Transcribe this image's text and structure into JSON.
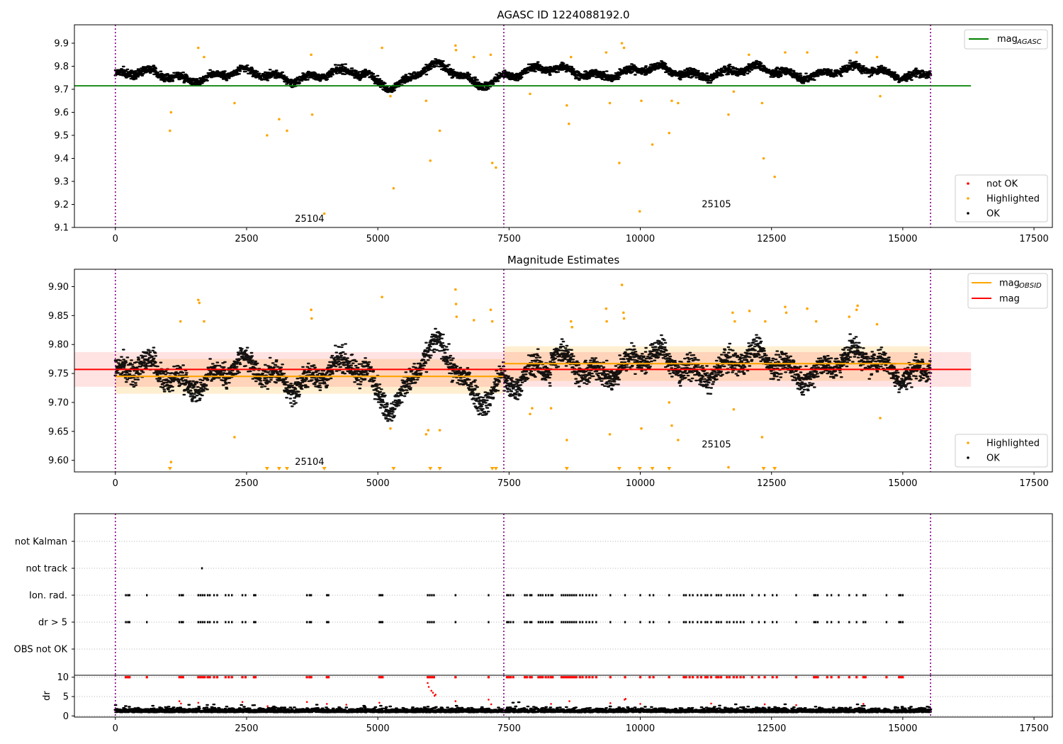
{
  "chart_data": [
    {
      "type": "scatter",
      "title": "AGASC ID 1224088192.0",
      "xlim": [
        -780,
        17850
      ],
      "ylim": [
        9.1,
        9.98
      ],
      "x_ticks": [
        0,
        2500,
        5000,
        7500,
        10000,
        12500,
        15000,
        17500
      ],
      "x_tick_labels": [
        "0",
        "2500",
        "5000",
        "7500",
        "10000",
        "12500",
        "15000",
        "17500"
      ],
      "y_ticks": [
        9.1,
        9.2,
        9.3,
        9.4,
        9.5,
        9.6,
        9.7,
        9.8,
        9.9
      ],
      "y_tick_labels": [
        "9.1",
        "9.2",
        "9.3",
        "9.4",
        "9.5",
        "9.6",
        "9.7",
        "9.8",
        "9.9"
      ],
      "mag_agasc": {
        "value": 9.715,
        "x_range": [
          -780,
          16300
        ],
        "color": "#008000"
      },
      "obsid_boundaries": [
        0,
        7400,
        15530
      ],
      "obsid_labels": [
        {
          "text": "25104",
          "x": 3700,
          "y": 9.125
        },
        {
          "text": "25105",
          "x": 11450,
          "y": 9.187
        }
      ],
      "legend": {
        "upper_right": [
          {
            "label": "mag",
            "sub": "AGASC",
            "color": "#008000"
          }
        ],
        "lower_right": [
          {
            "label": "not OK",
            "color": "#ff0000"
          },
          {
            "label": "Highlighted",
            "color": "#ffa500"
          },
          {
            "label": "OK",
            "color": "#000000"
          }
        ]
      },
      "ok_series": {
        "name": "OK",
        "color": "#000000",
        "x_range": [
          0,
          15530
        ],
        "baseline": 9.77
      },
      "highlighted_points": [
        [
          1040,
          9.52
        ],
        [
          1060,
          9.6
        ],
        [
          1580,
          9.88
        ],
        [
          1690,
          9.84
        ],
        [
          2270,
          9.64
        ],
        [
          2890,
          9.5
        ],
        [
          3120,
          9.57
        ],
        [
          3270,
          9.52
        ],
        [
          3730,
          9.85
        ],
        [
          3750,
          9.59
        ],
        [
          3980,
          9.16
        ],
        [
          5080,
          9.88
        ],
        [
          5240,
          9.67
        ],
        [
          5300,
          9.27
        ],
        [
          5920,
          9.65
        ],
        [
          6000,
          9.39
        ],
        [
          6180,
          9.52
        ],
        [
          6480,
          9.89
        ],
        [
          6490,
          9.87
        ],
        [
          6830,
          9.84
        ],
        [
          7150,
          9.85
        ],
        [
          7180,
          9.38
        ],
        [
          7250,
          9.36
        ],
        [
          7900,
          9.68
        ],
        [
          8600,
          9.63
        ],
        [
          8640,
          9.55
        ],
        [
          8680,
          9.84
        ],
        [
          9350,
          9.86
        ],
        [
          9420,
          9.64
        ],
        [
          9600,
          9.38
        ],
        [
          9650,
          9.9
        ],
        [
          9690,
          9.88
        ],
        [
          9990,
          9.17
        ],
        [
          10020,
          9.65
        ],
        [
          10230,
          9.46
        ],
        [
          10550,
          9.51
        ],
        [
          10600,
          9.65
        ],
        [
          10720,
          9.64
        ],
        [
          11680,
          9.59
        ],
        [
          11780,
          9.69
        ],
        [
          12070,
          9.85
        ],
        [
          12320,
          9.64
        ],
        [
          12350,
          9.4
        ],
        [
          12560,
          9.32
        ],
        [
          12760,
          9.86
        ],
        [
          13180,
          9.86
        ],
        [
          14120,
          9.86
        ],
        [
          14510,
          9.84
        ],
        [
          14570,
          9.67
        ]
      ]
    },
    {
      "type": "scatter",
      "title": "Magnitude Estimates",
      "xlim": [
        -780,
        17850
      ],
      "ylim": [
        9.58,
        9.93
      ],
      "x_ticks": [
        0,
        2500,
        5000,
        7500,
        10000,
        12500,
        15000,
        17500
      ],
      "x_tick_labels": [
        "0",
        "2500",
        "5000",
        "7500",
        "10000",
        "12500",
        "15000",
        "17500"
      ],
      "y_ticks": [
        9.6,
        9.65,
        9.7,
        9.75,
        9.8,
        9.85,
        9.9
      ],
      "y_tick_labels": [
        "9.60",
        "9.65",
        "9.70",
        "9.75",
        "9.80",
        "9.85",
        "9.90"
      ],
      "mag": {
        "value": 9.757,
        "band": [
          9.727,
          9.787
        ],
        "x_range": [
          -780,
          16300
        ],
        "color": "#ff0000"
      },
      "mag_obsid": [
        {
          "x_range": [
            0,
            7400
          ],
          "value": 9.745,
          "band": [
            9.715,
            9.775
          ]
        },
        {
          "x_range": [
            7400,
            15530
          ],
          "value": 9.767,
          "band": [
            9.737,
            9.797
          ]
        }
      ],
      "obsid_boundaries": [
        0,
        7400,
        15530
      ],
      "obsid_labels": [
        {
          "text": "25104",
          "x": 3700,
          "y": 9.592
        },
        {
          "text": "25105",
          "x": 11450,
          "y": 9.622
        }
      ],
      "legend": {
        "upper_right": [
          {
            "label": "mag",
            "sub": "OBSID",
            "color": "#ffa500"
          },
          {
            "label": "mag",
            "sub": "",
            "color": "#ff0000"
          }
        ],
        "lower_right": [
          {
            "label": "Highlighted",
            "color": "#ffa500"
          },
          {
            "label": "OK",
            "color": "#000000"
          }
        ]
      },
      "highlighted_points": [
        [
          1060,
          9.597
        ],
        [
          1240,
          9.84
        ],
        [
          1580,
          9.877
        ],
        [
          1600,
          9.872
        ],
        [
          1690,
          9.84
        ],
        [
          2270,
          9.64
        ],
        [
          3730,
          9.86
        ],
        [
          3740,
          9.845
        ],
        [
          5080,
          9.882
        ],
        [
          5240,
          9.655
        ],
        [
          5920,
          9.645
        ],
        [
          5960,
          9.652
        ],
        [
          6180,
          9.652
        ],
        [
          6480,
          9.895
        ],
        [
          6490,
          9.87
        ],
        [
          6500,
          9.848
        ],
        [
          6830,
          9.842
        ],
        [
          7150,
          9.86
        ],
        [
          7180,
          9.84
        ],
        [
          7900,
          9.68
        ],
        [
          7940,
          9.69
        ],
        [
          8300,
          9.69
        ],
        [
          8600,
          9.635
        ],
        [
          8680,
          9.84
        ],
        [
          8700,
          9.83
        ],
        [
          9350,
          9.862
        ],
        [
          9360,
          9.84
        ],
        [
          9420,
          9.645
        ],
        [
          9650,
          9.903
        ],
        [
          9680,
          9.855
        ],
        [
          9690,
          9.845
        ],
        [
          10020,
          9.655
        ],
        [
          10550,
          9.7
        ],
        [
          10600,
          9.66
        ],
        [
          10720,
          9.635
        ],
        [
          11680,
          9.588
        ],
        [
          11780,
          9.688
        ],
        [
          11760,
          9.855
        ],
        [
          11800,
          9.84
        ],
        [
          12080,
          9.858
        ],
        [
          12320,
          9.64
        ],
        [
          12380,
          9.84
        ],
        [
          12760,
          9.865
        ],
        [
          12780,
          9.855
        ],
        [
          13180,
          9.862
        ],
        [
          13350,
          9.84
        ],
        [
          13980,
          9.848
        ],
        [
          14120,
          9.86
        ],
        [
          14140,
          9.867
        ],
        [
          14510,
          9.835
        ],
        [
          14570,
          9.673
        ]
      ],
      "off_scale_marks": [
        1040,
        2890,
        3120,
        3270,
        3980,
        5300,
        6000,
        6180,
        7180,
        7250,
        8600,
        9600,
        9990,
        10230,
        10550,
        12350,
        12560
      ]
    },
    {
      "type": "scatter",
      "title": "",
      "xlim": [
        -780,
        17850
      ],
      "categories": [
        "not Kalman",
        "not track",
        "Ion. rad.",
        "dr > 5",
        "OBS not OK"
      ],
      "flag_points": {
        "not track": [
          1650
        ],
        "Ion. rad.": [
          200,
          240,
          270,
          600,
          1220,
          1260,
          1290,
          1580,
          1620,
          1660,
          1700,
          1760,
          1800,
          1880,
          1940,
          2100,
          2160,
          2220,
          2420,
          2480,
          2640,
          2670,
          3650,
          3700,
          3730,
          4030,
          4060,
          5030,
          5060,
          5090,
          5950,
          5990,
          6030,
          6070,
          6480,
          7110,
          7460,
          7490,
          7530,
          7580,
          7800,
          7840,
          7900,
          7930,
          8060,
          8100,
          8140,
          8200,
          8250,
          8300,
          8330,
          8500,
          8540,
          8580,
          8620,
          8660,
          8700,
          8740,
          8780,
          8850,
          8900,
          8970,
          9030,
          9090,
          9160,
          9430,
          9710,
          10000,
          10180,
          10250,
          10550,
          10830,
          10870,
          10940,
          11000,
          11090,
          11160,
          11240,
          11280,
          11350,
          11450,
          11490,
          11540,
          11650,
          11700,
          11780,
          11840,
          11910,
          11970,
          12130,
          12260,
          12370,
          12520,
          12600,
          12970,
          13310,
          13340,
          13380,
          13560,
          13640,
          13780,
          13980,
          14120,
          14250,
          14290,
          14690,
          14930,
          14960,
          15000
        ],
        "dr > 5": [
          200,
          240,
          270,
          600,
          1220,
          1260,
          1290,
          1580,
          1620,
          1660,
          1700,
          1760,
          1800,
          1880,
          1940,
          2100,
          2160,
          2220,
          2420,
          2480,
          2640,
          2670,
          3650,
          3700,
          3730,
          4030,
          4060,
          5030,
          5060,
          5090,
          5950,
          5990,
          6030,
          6070,
          6480,
          7110,
          7460,
          7490,
          7530,
          7580,
          7800,
          7840,
          7900,
          7930,
          8060,
          8100,
          8140,
          8200,
          8250,
          8300,
          8330,
          8500,
          8540,
          8580,
          8620,
          8660,
          8700,
          8740,
          8780,
          8850,
          8900,
          8970,
          9030,
          9090,
          9160,
          9430,
          9710,
          10000,
          10180,
          10250,
          10550,
          10830,
          10870,
          10940,
          11000,
          11090,
          11160,
          11240,
          11280,
          11350,
          11450,
          11490,
          11540,
          11650,
          11700,
          11780,
          11840,
          11910,
          11970,
          12130,
          12260,
          12370,
          12520,
          12600,
          12970,
          13310,
          13340,
          13380,
          13560,
          13640,
          13780,
          13980,
          14120,
          14250,
          14290,
          14690,
          14930,
          14960,
          15000
        ]
      },
      "obsid_boundaries": [
        0,
        7400,
        15530
      ]
    },
    {
      "type": "scatter",
      "title": "",
      "xlim": [
        -780,
        17850
      ],
      "ylim": [
        -0.3,
        10.5
      ],
      "ylabel": "dr",
      "x_ticks": [
        0,
        2500,
        5000,
        7500,
        10000,
        12500,
        15000,
        17500
      ],
      "x_tick_labels": [
        "0",
        "2500",
        "5000",
        "7500",
        "10000",
        "12500",
        "15000",
        "17500"
      ],
      "y_ticks": [
        0,
        5,
        10
      ],
      "y_tick_labels": [
        "0",
        "5",
        "10"
      ],
      "red_clip_value": 10,
      "red_scatter": [
        [
          1220,
          3.8
        ],
        [
          1250,
          3.2
        ],
        [
          1580,
          3.4
        ],
        [
          2420,
          3.6
        ],
        [
          2900,
          2.5
        ],
        [
          3650,
          3.6
        ],
        [
          4030,
          3.1
        ],
        [
          4400,
          2.9
        ],
        [
          5030,
          3.4
        ],
        [
          5950,
          8.5
        ],
        [
          5970,
          7.5
        ],
        [
          6020,
          6.5
        ],
        [
          6050,
          6.0
        ],
        [
          6080,
          5.2
        ],
        [
          6100,
          5.5
        ],
        [
          6480,
          3.8
        ],
        [
          7110,
          4.2
        ],
        [
          7160,
          3.0
        ],
        [
          8300,
          3.1
        ],
        [
          8650,
          3.8
        ],
        [
          9430,
          3.3
        ],
        [
          9700,
          4.2
        ],
        [
          9720,
          4.4
        ],
        [
          10000,
          3.1
        ],
        [
          11350,
          3.2
        ],
        [
          12370,
          3.0
        ],
        [
          12970,
          2.8
        ],
        [
          14250,
          3.1
        ]
      ],
      "obsid_boundaries": [
        0,
        7400,
        15530
      ]
    }
  ]
}
